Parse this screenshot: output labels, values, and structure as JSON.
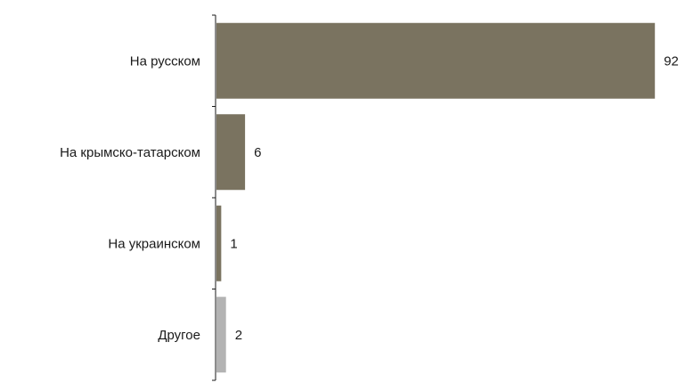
{
  "chart_data": {
    "type": "bar",
    "orientation": "horizontal",
    "categories": [
      "На русском",
      "На крымско-татарском",
      "На украинском",
      "Другое"
    ],
    "values": [
      92,
      6,
      1,
      2
    ],
    "colors": [
      "#7a7360",
      "#7a7360",
      "#7a7360",
      "#b3b3b3"
    ],
    "title": "",
    "xlabel": "",
    "ylabel": "",
    "xlim": [
      0,
      100
    ],
    "grid": false,
    "legend": "none"
  }
}
